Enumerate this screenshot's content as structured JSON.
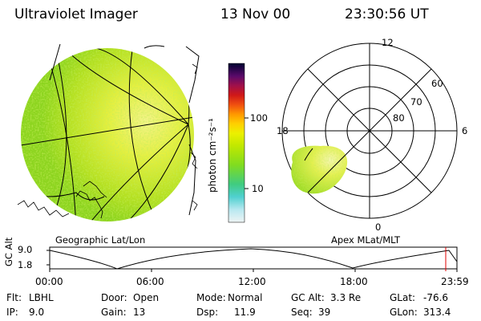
{
  "header": {
    "title": "Ultraviolet Imager",
    "date": "13 Nov 00",
    "time": "23:30:56 UT"
  },
  "colorbar": {
    "unit_label": "photon cm⁻²s⁻¹",
    "ticks": [
      "100",
      "10"
    ],
    "colors": [
      "#000033",
      "#1a0040",
      "#3b0a5c",
      "#6b0a6b",
      "#a0104a",
      "#d01a1a",
      "#f06010",
      "#ffa000",
      "#ffd800",
      "#e8f000",
      "#b8e800",
      "#80dc20",
      "#40d070",
      "#30c8c0",
      "#60d8e8",
      "#a8e8f0",
      "#e0f0f0"
    ]
  },
  "left_panel": {
    "label": "Geographic Lat/Lon"
  },
  "right_panel": {
    "label": "Apex MLat/MLT",
    "mlt_labels": {
      "top": "12",
      "left": "18",
      "right": "6",
      "bottom": "0"
    },
    "mlat_labels": [
      "60",
      "70",
      "80"
    ]
  },
  "timeline": {
    "ylabel": "GC Alt",
    "yticks": [
      "9.0",
      "1.8"
    ],
    "xticks": [
      "00:00",
      "06:00",
      "12:00",
      "18:00",
      "23:59"
    ],
    "marker_color": "#e00000"
  },
  "info": {
    "flt_label": "Flt:",
    "flt_value": "LBHL",
    "door_label": "Door:",
    "door_value": "Open",
    "mode_label": "Mode:",
    "mode_value": "Normal",
    "gcalt_label": "GC Alt:",
    "gcalt_value": "3.3 Re",
    "glat_label": "GLat:",
    "glat_value": "-76.6",
    "ip_label": "IP:",
    "ip_value": "9.0",
    "gain_label": "Gain:",
    "gain_value": "13",
    "dsp_label": "Dsp:",
    "dsp_value": "11.9",
    "seq_label": "Seq:",
    "seq_value": "39",
    "glon_label": "GLon:",
    "glon_value": "313.4"
  }
}
